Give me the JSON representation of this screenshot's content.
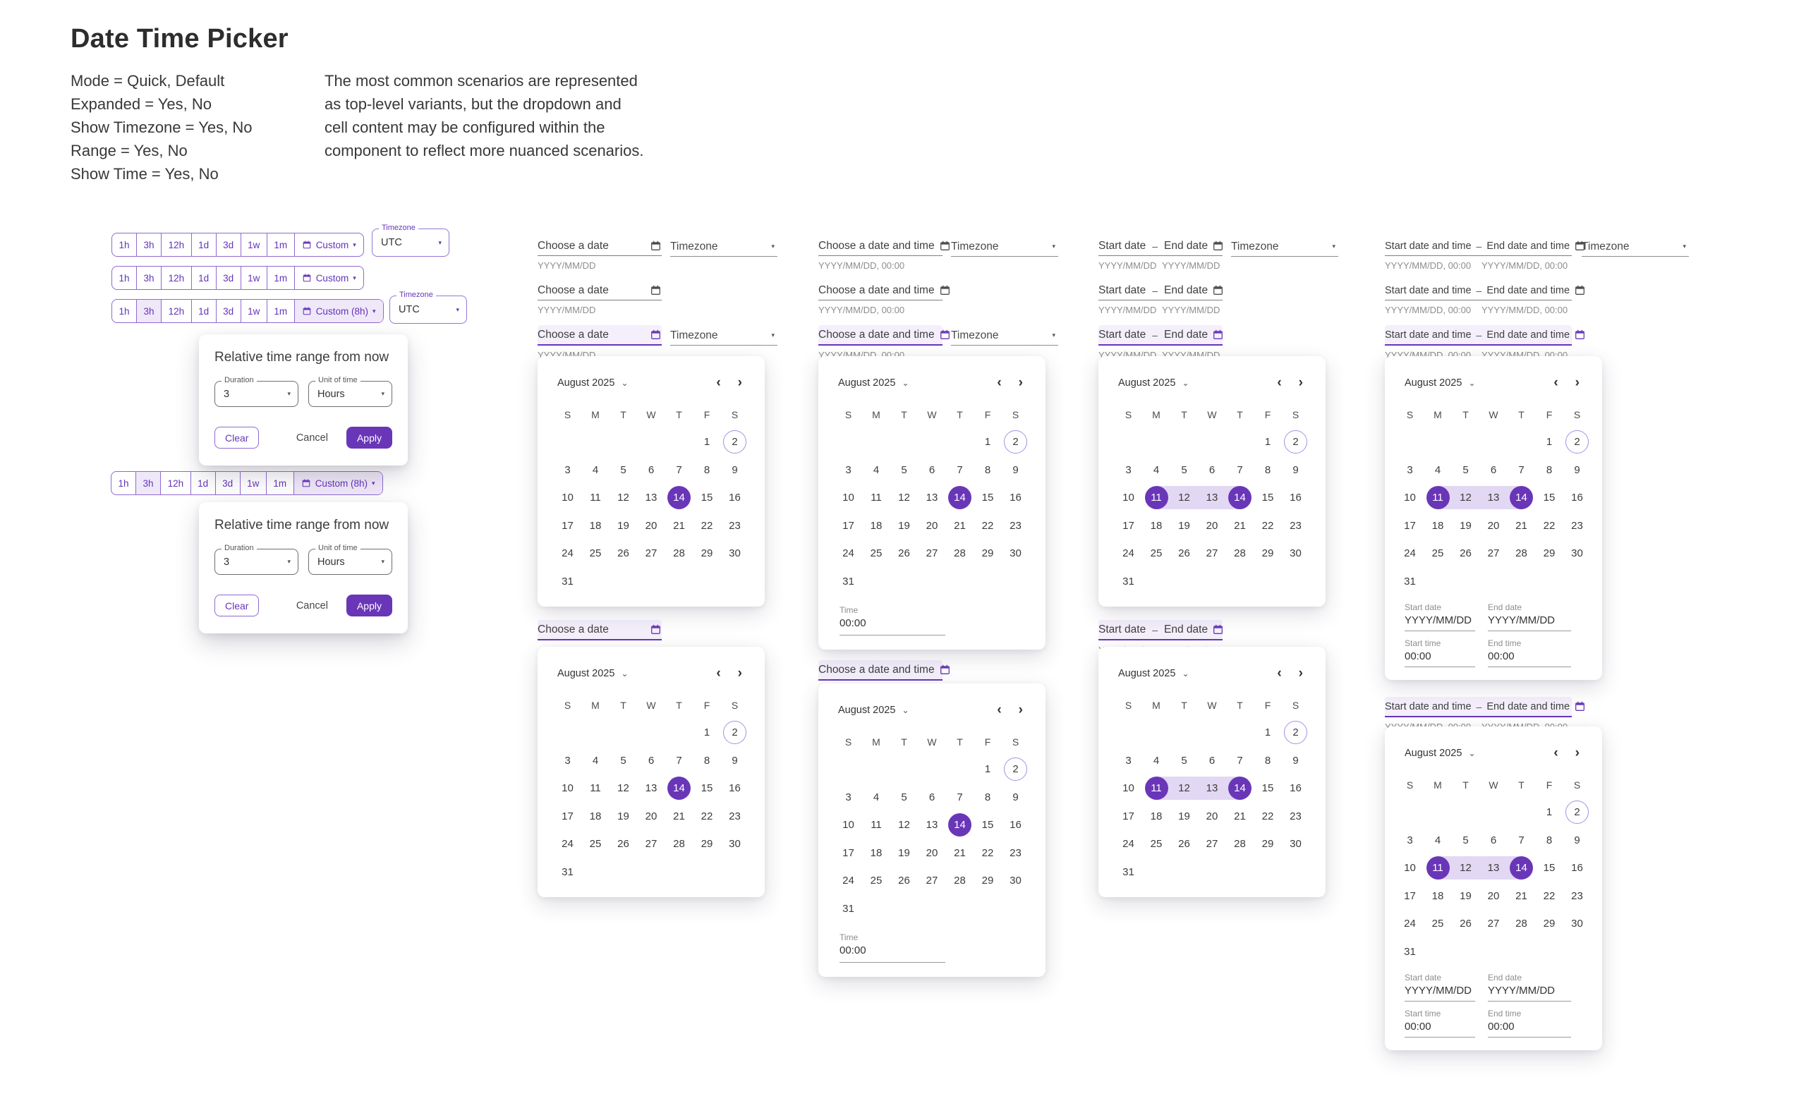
{
  "page_title": "Date Time Picker",
  "header": {
    "props": [
      "Mode = Quick, Default",
      "Expanded = Yes, No",
      "Show Timezone = Yes, No",
      "Range = Yes, No",
      "Show Time = Yes, No"
    ],
    "description": [
      "The most common scenarios are represented",
      "as top-level variants, but the dropdown and",
      "cell content may be configured within the",
      "component to reflect more nuanced scenarios."
    ]
  },
  "colors": {
    "accent": "#6936b8",
    "bar_border": "#8f6ad2",
    "bar_text": "#6432bb",
    "seg_on": "#efe8f8",
    "field_border": "#9477d6",
    "focus_bg": "#f4effb",
    "range_band": "#e2d8f3",
    "today_ring": "#a98fe0"
  },
  "quick_bar": {
    "segments": [
      "1h",
      "3h",
      "12h",
      "1d",
      "3d",
      "1w",
      "1m"
    ],
    "custom_label": "Custom",
    "custom_8h_label": "Custom (8h)"
  },
  "timezone": {
    "label": "Timezone",
    "value": "UTC"
  },
  "popup": {
    "title": "Relative time range from now",
    "duration_label": "Duration",
    "duration_value": "3",
    "unit_label": "Unit of time",
    "unit_value": "Hours",
    "clear": "Clear",
    "cancel": "Cancel",
    "apply": "Apply"
  },
  "inputs": {
    "choose_date": "Choose a date",
    "choose_datetime": "Choose a date and time",
    "start_date": "Start date",
    "end_date": "End date",
    "start_datetime": "Start date and time",
    "end_datetime": "End date and time",
    "dash": "–",
    "helper_date": "YYYY/MM/DD",
    "helper_datetime": "YYYY/MM/DD, 00:00"
  },
  "calendar": {
    "month_label": "August 2025",
    "weekdays": [
      "S",
      "M",
      "T",
      "W",
      "T",
      "F",
      "S"
    ],
    "weeks": [
      [
        "",
        "",
        "",
        "",
        "",
        "1",
        "2"
      ],
      [
        "3",
        "4",
        "5",
        "6",
        "7",
        "8",
        "9"
      ],
      [
        "10",
        "11",
        "12",
        "13",
        "14",
        "15",
        "16"
      ],
      [
        "17",
        "18",
        "19",
        "20",
        "21",
        "22",
        "23"
      ],
      [
        "24",
        "25",
        "26",
        "27",
        "28",
        "29",
        "30"
      ],
      [
        "31",
        "",
        "",
        "",
        "",
        "",
        ""
      ]
    ],
    "selected_day": "14",
    "today_day": "2",
    "range_start": "11",
    "range_end": "14",
    "time_label": "Time",
    "time_value": "00:00",
    "footer": {
      "start_date_label": "Start date",
      "end_date_label": "End date",
      "start_time_label": "Start time",
      "end_time_label": "End time",
      "date_value": "YYYY/MM/DD",
      "time_value": "00:00"
    }
  }
}
